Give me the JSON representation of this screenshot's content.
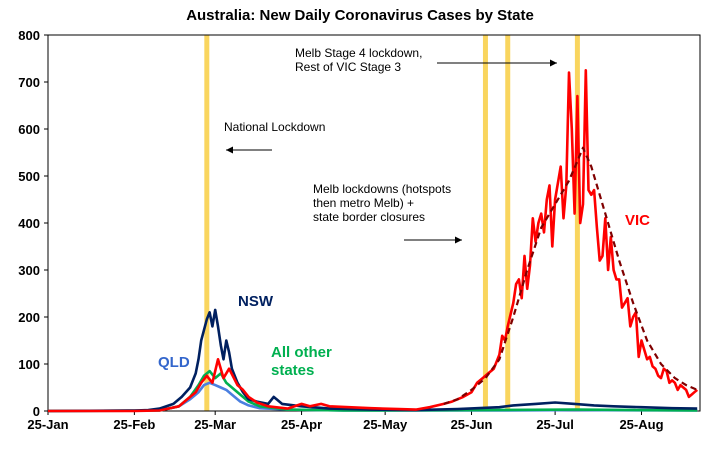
{
  "chart_data": {
    "type": "line",
    "title": "Australia: New Daily Coronavirus Cases by State",
    "xlabel": "",
    "ylabel": "",
    "ylim": [
      0,
      800
    ],
    "yticks": [
      0,
      100,
      200,
      300,
      400,
      500,
      600,
      700,
      800
    ],
    "x_start": "2020-01-25",
    "x_end": "2020-09-15",
    "xticks": [
      {
        "date": "2020-01-25",
        "label": "25-Jan"
      },
      {
        "date": "2020-02-25",
        "label": "25-Feb"
      },
      {
        "date": "2020-03-25",
        "label": "25-Mar"
      },
      {
        "date": "2020-04-25",
        "label": "25-Apr"
      },
      {
        "date": "2020-05-25",
        "label": "25-May"
      },
      {
        "date": "2020-06-25",
        "label": "25-Jun"
      },
      {
        "date": "2020-07-25",
        "label": "25-Jul"
      },
      {
        "date": "2020-08-25",
        "label": "25-Aug"
      }
    ],
    "grid": false,
    "legend": "none",
    "highlight_dates": [
      "2020-03-22",
      "2020-06-30",
      "2020-07-08",
      "2020-08-02"
    ],
    "highlight_color": "#f9d55e",
    "annotations": [
      {
        "lines": [
          "National Lockdown"
        ],
        "arrow": "left"
      },
      {
        "lines": [
          "Melb lockdowns (hotspots",
          "then metro Melb) +",
          "state border closures"
        ],
        "arrow": "right"
      },
      {
        "lines": [
          "Melb Stage 4 lockdown,",
          "Rest of VIC  Stage 3"
        ],
        "arrow": "right"
      }
    ],
    "series": [
      {
        "name": "VIC",
        "label_color": "#ff0000",
        "color": "#ff0000",
        "points": [
          [
            "2020-01-25",
            0
          ],
          [
            "2020-02-25",
            0
          ],
          [
            "2020-03-05",
            1
          ],
          [
            "2020-03-12",
            10
          ],
          [
            "2020-03-15",
            25
          ],
          [
            "2020-03-18",
            40
          ],
          [
            "2020-03-20",
            60
          ],
          [
            "2020-03-22",
            75
          ],
          [
            "2020-03-24",
            60
          ],
          [
            "2020-03-26",
            110
          ],
          [
            "2020-03-28",
            70
          ],
          [
            "2020-03-30",
            90
          ],
          [
            "2020-04-02",
            55
          ],
          [
            "2020-04-04",
            45
          ],
          [
            "2020-04-06",
            30
          ],
          [
            "2020-04-09",
            18
          ],
          [
            "2020-04-13",
            10
          ],
          [
            "2020-04-20",
            5
          ],
          [
            "2020-04-25",
            15
          ],
          [
            "2020-04-28",
            10
          ],
          [
            "2020-05-02",
            15
          ],
          [
            "2020-05-05",
            10
          ],
          [
            "2020-05-12",
            8
          ],
          [
            "2020-05-20",
            6
          ],
          [
            "2020-05-30",
            4
          ],
          [
            "2020-06-05",
            3
          ],
          [
            "2020-06-10",
            8
          ],
          [
            "2020-06-15",
            15
          ],
          [
            "2020-06-18",
            20
          ],
          [
            "2020-06-22",
            30
          ],
          [
            "2020-06-25",
            40
          ],
          [
            "2020-06-27",
            60
          ],
          [
            "2020-06-29",
            70
          ],
          [
            "2020-07-01",
            80
          ],
          [
            "2020-07-03",
            90
          ],
          [
            "2020-07-05",
            120
          ],
          [
            "2020-07-06",
            160
          ],
          [
            "2020-07-07",
            150
          ],
          [
            "2020-07-08",
            180
          ],
          [
            "2020-07-10",
            230
          ],
          [
            "2020-07-11",
            270
          ],
          [
            "2020-07-12",
            280
          ],
          [
            "2020-07-13",
            240
          ],
          [
            "2020-07-14",
            330
          ],
          [
            "2020-07-15",
            260
          ],
          [
            "2020-07-16",
            310
          ],
          [
            "2020-07-17",
            410
          ],
          [
            "2020-07-18",
            360
          ],
          [
            "2020-07-19",
            400
          ],
          [
            "2020-07-20",
            420
          ],
          [
            "2020-07-21",
            380
          ],
          [
            "2020-07-22",
            450
          ],
          [
            "2020-07-23",
            480
          ],
          [
            "2020-07-24",
            350
          ],
          [
            "2020-07-25",
            450
          ],
          [
            "2020-07-27",
            520
          ],
          [
            "2020-07-28",
            410
          ],
          [
            "2020-07-29",
            480
          ],
          [
            "2020-07-30",
            720
          ],
          [
            "2020-07-31",
            600
          ],
          [
            "2020-08-01",
            420
          ],
          [
            "2020-08-02",
            670
          ],
          [
            "2020-08-03",
            400
          ],
          [
            "2020-08-04",
            440
          ],
          [
            "2020-08-05",
            725
          ],
          [
            "2020-08-06",
            470
          ],
          [
            "2020-08-07",
            460
          ],
          [
            "2020-08-08",
            470
          ],
          [
            "2020-08-09",
            390
          ],
          [
            "2020-08-10",
            320
          ],
          [
            "2020-08-11",
            330
          ],
          [
            "2020-08-12",
            410
          ],
          [
            "2020-08-13",
            300
          ],
          [
            "2020-08-14",
            370
          ],
          [
            "2020-08-15",
            300
          ],
          [
            "2020-08-16",
            280
          ],
          [
            "2020-08-17",
            280
          ],
          [
            "2020-08-18",
            220
          ],
          [
            "2020-08-19",
            230
          ],
          [
            "2020-08-20",
            240
          ],
          [
            "2020-08-21",
            180
          ],
          [
            "2020-08-22",
            200
          ],
          [
            "2020-08-23",
            210
          ],
          [
            "2020-08-24",
            115
          ],
          [
            "2020-08-25",
            150
          ],
          [
            "2020-08-26",
            130
          ],
          [
            "2020-08-27",
            110
          ],
          [
            "2020-08-28",
            115
          ],
          [
            "2020-08-29",
            95
          ],
          [
            "2020-08-30",
            90
          ],
          [
            "2020-08-31",
            75
          ],
          [
            "2020-09-01",
            70
          ],
          [
            "2020-09-02",
            90
          ],
          [
            "2020-09-03",
            85
          ],
          [
            "2020-09-04",
            60
          ],
          [
            "2020-09-05",
            65
          ],
          [
            "2020-09-06",
            60
          ],
          [
            "2020-09-07",
            45
          ],
          [
            "2020-09-08",
            55
          ],
          [
            "2020-09-09",
            50
          ],
          [
            "2020-09-10",
            45
          ],
          [
            "2020-09-11",
            30
          ],
          [
            "2020-09-12",
            35
          ],
          [
            "2020-09-13",
            40
          ],
          [
            "2020-09-14",
            45
          ]
        ]
      },
      {
        "name": "",
        "color": "#800000",
        "dashed": true,
        "points": [
          [
            "2020-06-15",
            15
          ],
          [
            "2020-06-20",
            25
          ],
          [
            "2020-06-25",
            45
          ],
          [
            "2020-06-30",
            70
          ],
          [
            "2020-07-05",
            110
          ],
          [
            "2020-07-10",
            200
          ],
          [
            "2020-07-15",
            300
          ],
          [
            "2020-07-20",
            390
          ],
          [
            "2020-07-25",
            440
          ],
          [
            "2020-07-30",
            490
          ],
          [
            "2020-08-04",
            560
          ],
          [
            "2020-08-07",
            520
          ],
          [
            "2020-08-12",
            420
          ],
          [
            "2020-08-17",
            320
          ],
          [
            "2020-08-22",
            230
          ],
          [
            "2020-08-27",
            150
          ],
          [
            "2020-09-01",
            100
          ],
          [
            "2020-09-06",
            70
          ],
          [
            "2020-09-10",
            55
          ],
          [
            "2020-09-14",
            45
          ]
        ]
      },
      {
        "name": "NSW",
        "label_color": "#002060",
        "color": "#002060",
        "points": [
          [
            "2020-01-25",
            0
          ],
          [
            "2020-02-25",
            1
          ],
          [
            "2020-03-01",
            2
          ],
          [
            "2020-03-05",
            5
          ],
          [
            "2020-03-10",
            15
          ],
          [
            "2020-03-13",
            30
          ],
          [
            "2020-03-16",
            50
          ],
          [
            "2020-03-18",
            80
          ],
          [
            "2020-03-19",
            110
          ],
          [
            "2020-03-20",
            150
          ],
          [
            "2020-03-22",
            195
          ],
          [
            "2020-03-23",
            210
          ],
          [
            "2020-03-24",
            180
          ],
          [
            "2020-03-25",
            215
          ],
          [
            "2020-03-26",
            180
          ],
          [
            "2020-03-27",
            140
          ],
          [
            "2020-03-28",
            110
          ],
          [
            "2020-03-29",
            150
          ],
          [
            "2020-03-30",
            125
          ],
          [
            "2020-03-31",
            90
          ],
          [
            "2020-04-02",
            60
          ],
          [
            "2020-04-04",
            40
          ],
          [
            "2020-04-06",
            25
          ],
          [
            "2020-04-09",
            20
          ],
          [
            "2020-04-13",
            15
          ],
          [
            "2020-04-15",
            30
          ],
          [
            "2020-04-18",
            15
          ],
          [
            "2020-04-25",
            10
          ],
          [
            "2020-05-05",
            5
          ],
          [
            "2020-05-20",
            3
          ],
          [
            "2020-06-05",
            2
          ],
          [
            "2020-06-20",
            4
          ],
          [
            "2020-07-05",
            8
          ],
          [
            "2020-07-10",
            12
          ],
          [
            "2020-07-18",
            15
          ],
          [
            "2020-07-25",
            18
          ],
          [
            "2020-08-01",
            15
          ],
          [
            "2020-08-08",
            12
          ],
          [
            "2020-08-15",
            10
          ],
          [
            "2020-08-25",
            8
          ],
          [
            "2020-09-05",
            6
          ],
          [
            "2020-09-14",
            5
          ]
        ]
      },
      {
        "name": "QLD",
        "label_color": "#3366cc",
        "color": "#4a7fe0",
        "points": [
          [
            "2020-01-25",
            0
          ],
          [
            "2020-03-05",
            1
          ],
          [
            "2020-03-12",
            10
          ],
          [
            "2020-03-16",
            25
          ],
          [
            "2020-03-19",
            40
          ],
          [
            "2020-03-21",
            55
          ],
          [
            "2020-03-23",
            60
          ],
          [
            "2020-03-25",
            55
          ],
          [
            "2020-03-27",
            50
          ],
          [
            "2020-03-29",
            45
          ],
          [
            "2020-03-31",
            35
          ],
          [
            "2020-04-03",
            20
          ],
          [
            "2020-04-06",
            12
          ],
          [
            "2020-04-10",
            6
          ],
          [
            "2020-04-20",
            3
          ],
          [
            "2020-05-10",
            1
          ],
          [
            "2020-07-01",
            1
          ],
          [
            "2020-08-01",
            2
          ],
          [
            "2020-09-14",
            1
          ]
        ]
      },
      {
        "name": "All other states",
        "label_color": "#00b050",
        "color": "#00b050",
        "points": [
          [
            "2020-01-25",
            0
          ],
          [
            "2020-03-05",
            1
          ],
          [
            "2020-03-12",
            10
          ],
          [
            "2020-03-16",
            30
          ],
          [
            "2020-03-19",
            55
          ],
          [
            "2020-03-21",
            75
          ],
          [
            "2020-03-23",
            85
          ],
          [
            "2020-03-25",
            70
          ],
          [
            "2020-03-27",
            80
          ],
          [
            "2020-03-29",
            60
          ],
          [
            "2020-03-31",
            50
          ],
          [
            "2020-04-03",
            35
          ],
          [
            "2020-04-06",
            20
          ],
          [
            "2020-04-10",
            10
          ],
          [
            "2020-04-20",
            3
          ],
          [
            "2020-05-10",
            1
          ],
          [
            "2020-07-01",
            2
          ],
          [
            "2020-08-01",
            3
          ],
          [
            "2020-09-14",
            1
          ]
        ]
      }
    ]
  }
}
